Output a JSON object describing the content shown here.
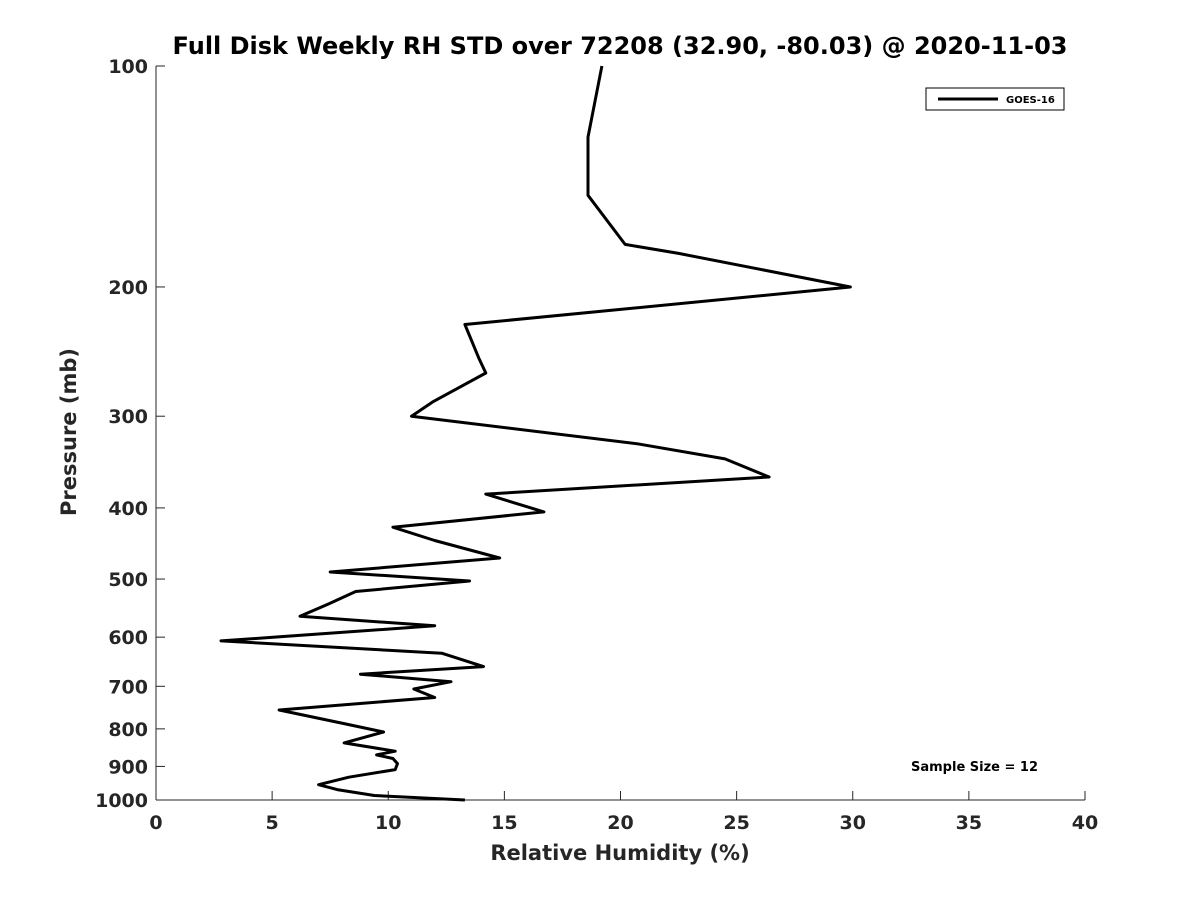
{
  "chart_data": {
    "type": "line",
    "title": "Full Disk Weekly RH STD over 72208 (32.90, -80.03) @ 2020-11-03",
    "xlabel": "Relative Humidity (%)",
    "ylabel": "Pressure (mb)",
    "xlim": [
      0,
      40
    ],
    "ylim": [
      100,
      1000
    ],
    "yscale": "log",
    "yreversed": true,
    "xticks": [
      "0",
      "5",
      "10",
      "15",
      "20",
      "25",
      "30",
      "35",
      "40"
    ],
    "yticks": [
      "100",
      "200",
      "300",
      "400",
      "500",
      "600",
      "700",
      "800",
      "900",
      "1000"
    ],
    "grid": false,
    "legend": {
      "position": "top-right",
      "entries": [
        "GOES-16"
      ]
    },
    "annotation": "Sample Size = 12",
    "series": [
      {
        "name": "GOES-16",
        "color": "#000000",
        "points": [
          [
            19.2,
            100
          ],
          [
            18.6,
            125
          ],
          [
            18.6,
            150
          ],
          [
            20.2,
            175
          ],
          [
            22.5,
            180
          ],
          [
            29.9,
            200
          ],
          [
            13.3,
            225
          ],
          [
            13.9,
            250
          ],
          [
            14.2,
            262
          ],
          [
            11.9,
            287
          ],
          [
            11.0,
            300
          ],
          [
            20.7,
            327
          ],
          [
            24.5,
            343
          ],
          [
            26.4,
            363
          ],
          [
            14.2,
            383
          ],
          [
            16.7,
            405
          ],
          [
            10.2,
            425
          ],
          [
            12.0,
            443
          ],
          [
            14.8,
            468
          ],
          [
            7.5,
            489
          ],
          [
            13.5,
            503
          ],
          [
            8.6,
            520
          ],
          [
            7.4,
            541
          ],
          [
            6.2,
            562
          ],
          [
            12.0,
            579
          ],
          [
            2.8,
            607
          ],
          [
            12.3,
            631
          ],
          [
            14.1,
            658
          ],
          [
            8.8,
            674
          ],
          [
            12.7,
            690
          ],
          [
            11.1,
            706
          ],
          [
            12.0,
            725
          ],
          [
            5.3,
            754
          ],
          [
            8.1,
            787
          ],
          [
            9.8,
            808
          ],
          [
            8.1,
            836
          ],
          [
            10.3,
            858
          ],
          [
            9.5,
            868
          ],
          [
            10.2,
            878
          ],
          [
            10.4,
            892
          ],
          [
            10.3,
            909
          ],
          [
            8.3,
            931
          ],
          [
            7.0,
            953
          ],
          [
            7.8,
            968
          ],
          [
            9.4,
            986
          ],
          [
            13.3,
            1000
          ]
        ]
      }
    ]
  }
}
